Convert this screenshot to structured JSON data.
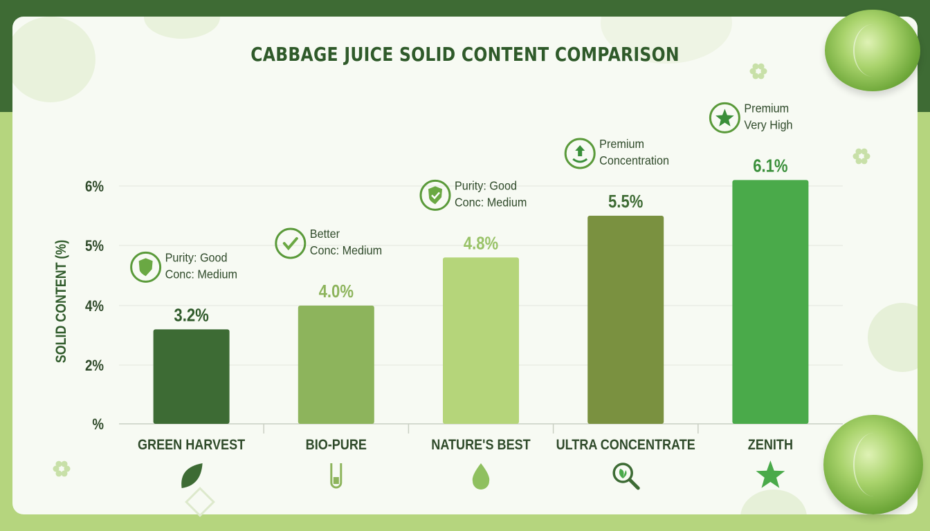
{
  "chart_data": {
    "type": "bar",
    "title": "CABBAGE JUICE SOLID CONTENT COMPARISON",
    "ylabel": "SOLID CONTENT (%)",
    "xlabel": "",
    "y_ticks": [
      {
        "value": 0,
        "label": "%"
      },
      {
        "value": 2,
        "label": "2%"
      },
      {
        "value": 4,
        "label": "4%"
      },
      {
        "value": 5,
        "label": "5%"
      },
      {
        "value": 6,
        "label": "6%"
      }
    ],
    "categories": [
      "GREEN HARVEST",
      "BIO-PURE",
      "NATURE'S BEST",
      "ULTRA CONCENTRATE",
      "ZENITH"
    ],
    "values": [
      3.2,
      4.0,
      4.8,
      5.5,
      6.1
    ],
    "value_labels": [
      "3.2%",
      "4.0%",
      "4.8%",
      "5.5%",
      "6.1%"
    ],
    "colors": [
      "#3d6b34",
      "#8db45c",
      "#b5d57a",
      "#7a9140",
      "#4aaa4a"
    ],
    "badges": [
      {
        "icon": "shield-icon",
        "line1": "Purity: Good",
        "line2": "Conc: Medium"
      },
      {
        "icon": "check-circle-icon",
        "line1": "Better",
        "line2": "Conc: Medium"
      },
      {
        "icon": "shield-check-icon",
        "line1": "Purity: Good",
        "line2": "Conc: Medium"
      },
      {
        "icon": "rise-arrow-icon",
        "line1": "Premium",
        "line2": "Concentration"
      },
      {
        "icon": "star-badge-icon",
        "line1": "Premium",
        "line2": "Very High"
      }
    ],
    "category_icons": [
      "leaf-icon",
      "test-tube-icon",
      "droplet-icon",
      "magnifier-leaf-icon",
      "star-icon"
    ],
    "grid": true
  }
}
